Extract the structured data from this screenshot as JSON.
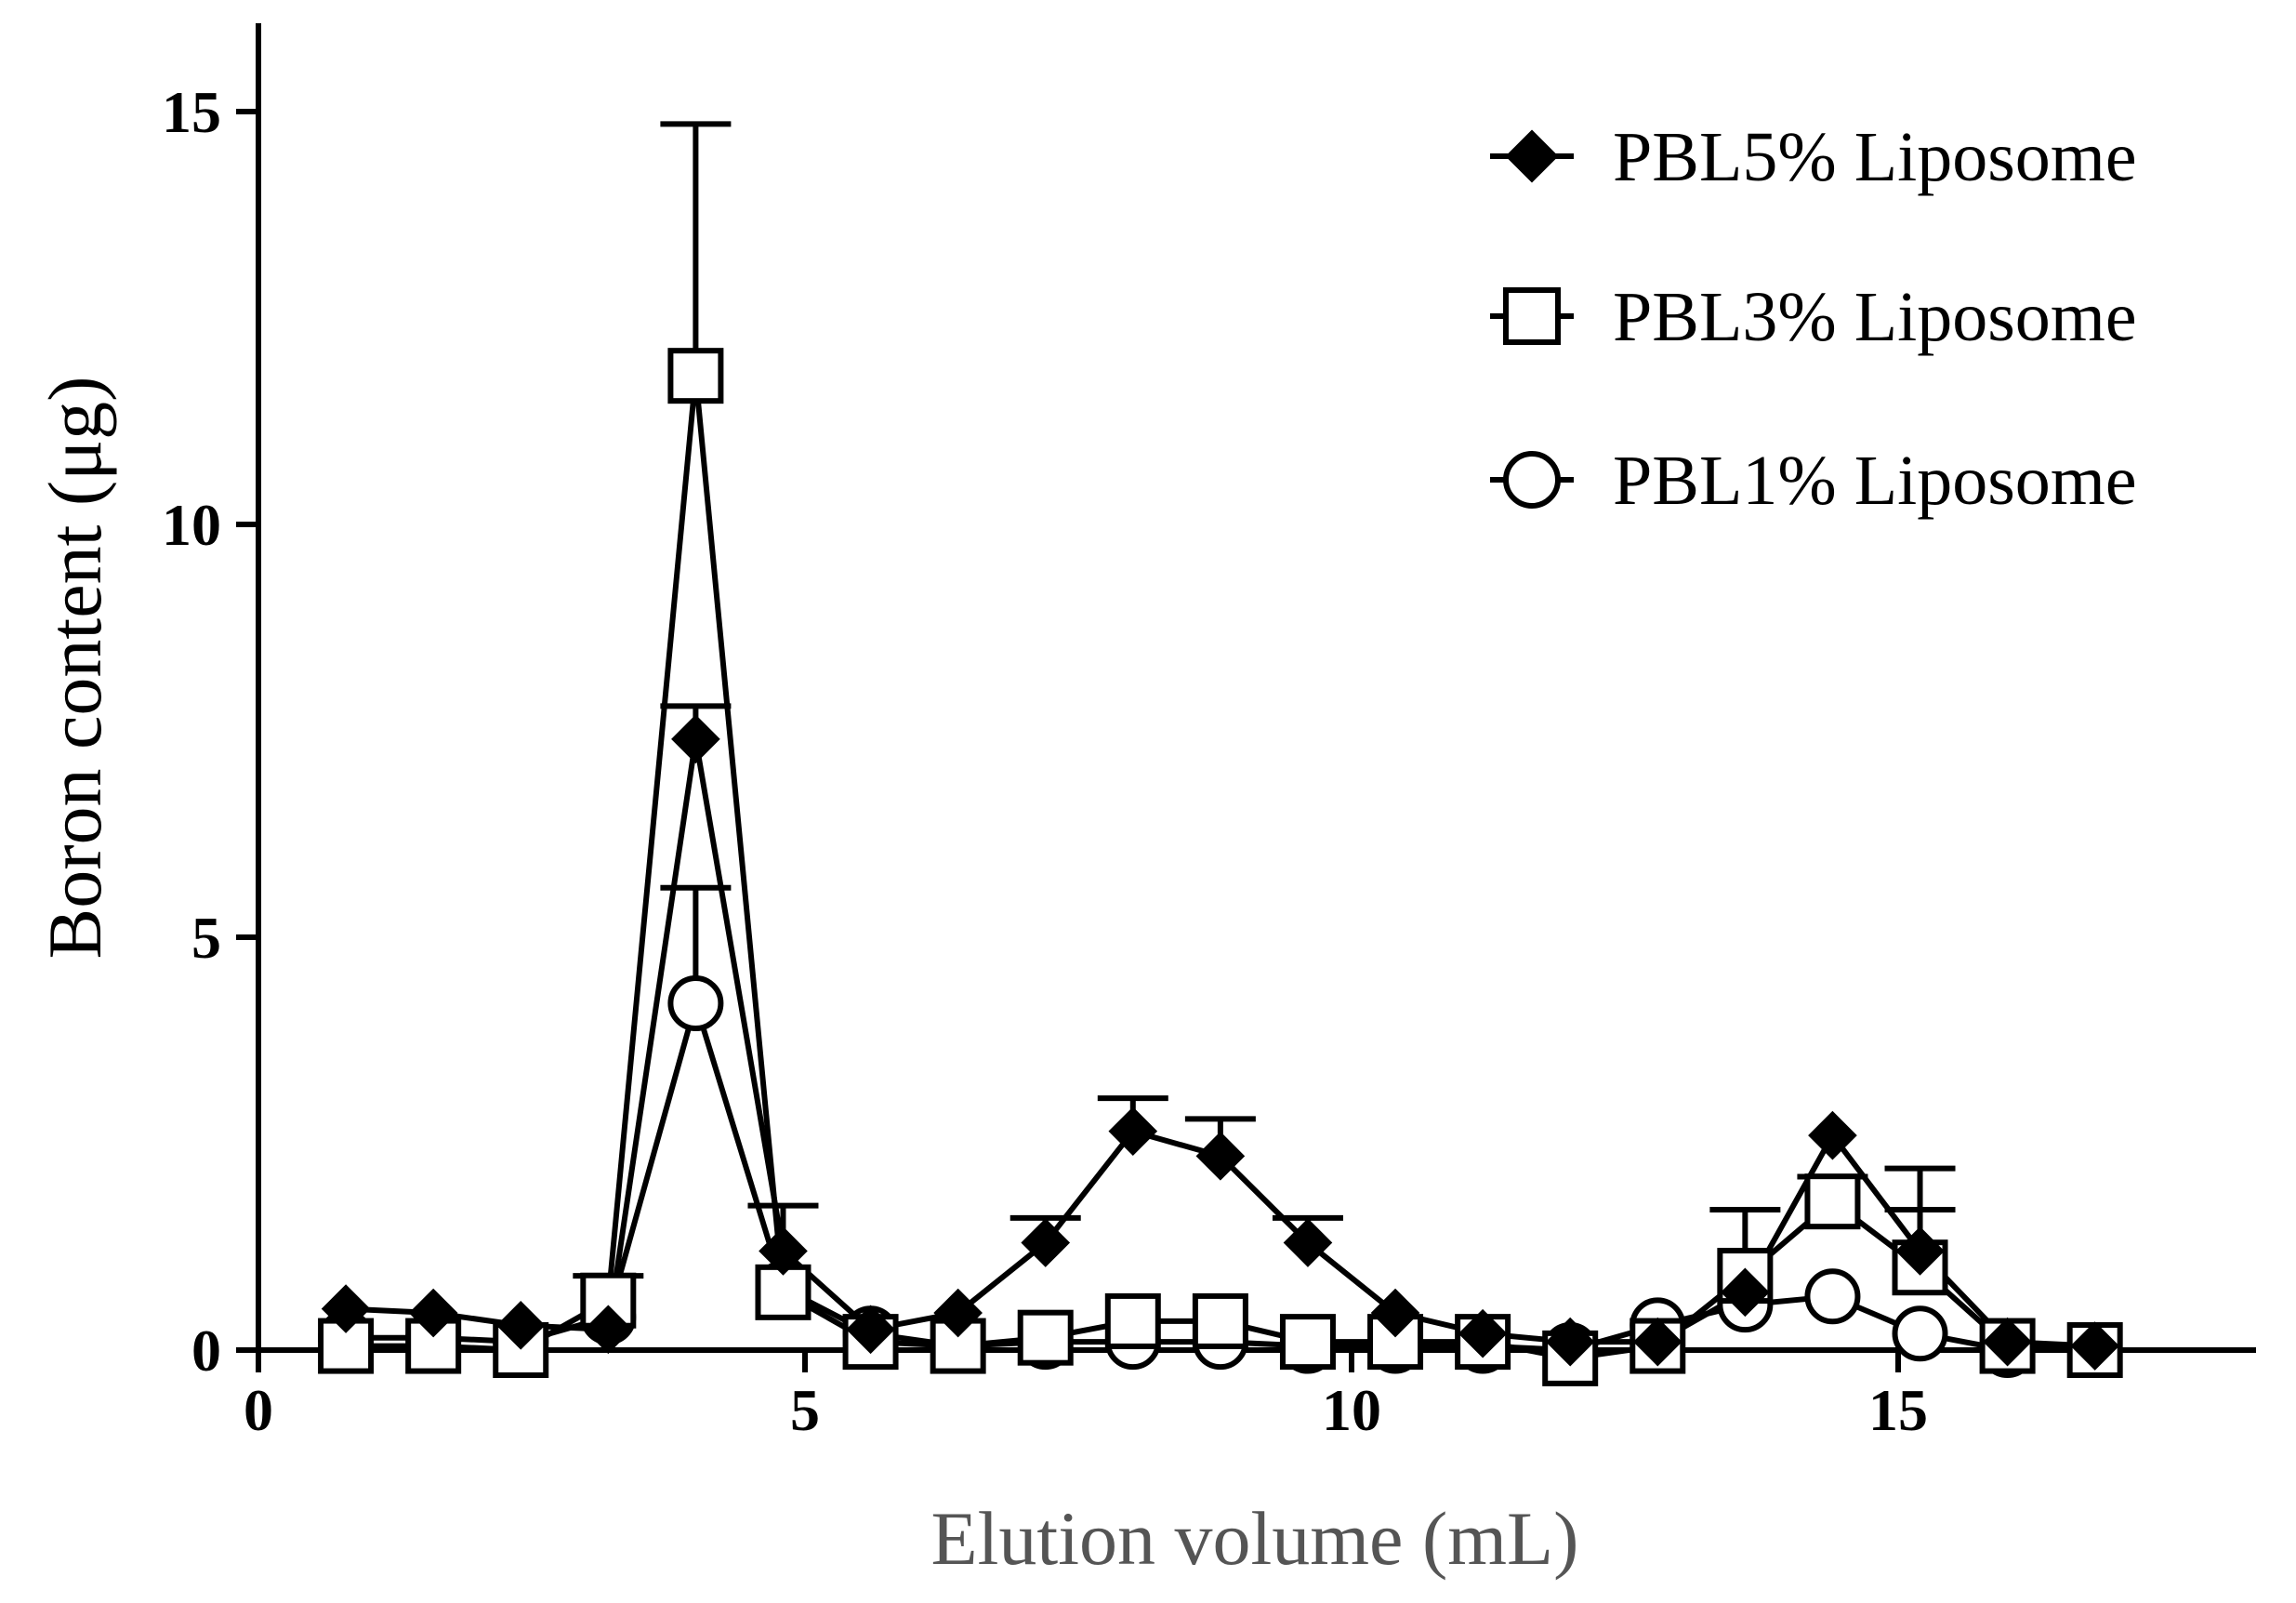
{
  "chart_data": {
    "type": "line",
    "xlabel": "Elution volume (mL)",
    "ylabel": "Boron content (μg)",
    "xlim": [
      0,
      18.3
    ],
    "ylim": [
      0,
      16
    ],
    "x_ticks": [
      0,
      5,
      10,
      15
    ],
    "y_ticks": [
      0,
      5,
      10,
      15
    ],
    "x_tick_labels": [
      "0",
      "5",
      "10",
      "15"
    ],
    "y_tick_labels": [
      "0",
      "5",
      "10",
      "15"
    ],
    "grid": false,
    "legend_position": "top-right",
    "x": [
      0.8,
      1.6,
      2.4,
      3.2,
      4.0,
      4.8,
      5.6,
      6.4,
      7.2,
      8.0,
      8.8,
      9.6,
      10.4,
      11.2,
      12.0,
      12.8,
      13.6,
      14.4,
      15.2,
      16.0,
      16.8
    ],
    "series": [
      {
        "name": "PBL5% Liposome",
        "marker": "filled-diamond",
        "values": [
          0.5,
          0.45,
          0.3,
          0.25,
          7.4,
          1.2,
          0.25,
          0.45,
          1.3,
          2.65,
          2.35,
          1.3,
          0.45,
          0.2,
          0.1,
          0.1,
          0.7,
          2.6,
          1.2,
          0.1,
          0.05
        ],
        "error": [
          0,
          0,
          0,
          0,
          0.4,
          0.55,
          0,
          0,
          0.3,
          0.4,
          0.45,
          0.3,
          0,
          0,
          0,
          0,
          0,
          0,
          0.5,
          0,
          0
        ]
      },
      {
        "name": "PBL3% Liposome",
        "marker": "open-square",
        "values": [
          0.05,
          0.05,
          0.0,
          0.6,
          11.8,
          0.7,
          0.1,
          0.05,
          0.15,
          0.35,
          0.35,
          0.1,
          0.1,
          0.1,
          -0.1,
          0.05,
          0.9,
          1.8,
          1.0,
          0.05,
          0.0
        ],
        "error": [
          0,
          0,
          0,
          0.3,
          3.05,
          0,
          0,
          0,
          0,
          0,
          0,
          0,
          0,
          0,
          0,
          0,
          0.8,
          0.3,
          1.2,
          0,
          0
        ]
      },
      {
        "name": "PBL1% Liposome",
        "marker": "open-circle",
        "values": [
          0.15,
          0.15,
          0.1,
          0.4,
          4.2,
          0.75,
          0.2,
          0.05,
          0.1,
          0.1,
          0.1,
          0.05,
          0.05,
          0.05,
          0.0,
          0.3,
          0.55,
          0.65,
          0.2,
          0.0,
          0.0
        ],
        "error": [
          0,
          0,
          0,
          0,
          1.4,
          0,
          0,
          0,
          0,
          0,
          0,
          0,
          0,
          0,
          0,
          0,
          0,
          0,
          0,
          0,
          0
        ]
      }
    ]
  }
}
